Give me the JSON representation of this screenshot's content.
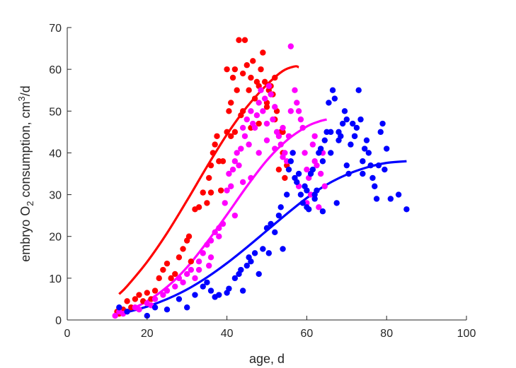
{
  "chart_data": {
    "type": "scatter",
    "title": "",
    "xlabel": "age, d",
    "ylabel_parts": {
      "pre": "embryo O",
      "sub": "2",
      "mid": " consumption, cm",
      "sup": "3",
      "post": "/d"
    },
    "xlim": [
      0,
      100
    ],
    "ylim": [
      0,
      70
    ],
    "xticks": [
      0,
      20,
      40,
      60,
      80,
      100
    ],
    "yticks": [
      0,
      10,
      20,
      30,
      40,
      50,
      60,
      70
    ],
    "grid": false,
    "legend": "none",
    "series": [
      {
        "color": "#ff0000",
        "points": [
          [
            12.5,
            2
          ],
          [
            13,
            1.5
          ],
          [
            14,
            2.5
          ],
          [
            15,
            4.5
          ],
          [
            16,
            3
          ],
          [
            17,
            5
          ],
          [
            18,
            6
          ],
          [
            19,
            4.5
          ],
          [
            20,
            6.5
          ],
          [
            21,
            5
          ],
          [
            22,
            7
          ],
          [
            23,
            10
          ],
          [
            24,
            12
          ],
          [
            25,
            13.5
          ],
          [
            26,
            10
          ],
          [
            27,
            11
          ],
          [
            28,
            15
          ],
          [
            29,
            17
          ],
          [
            30,
            19
          ],
          [
            30.5,
            20
          ],
          [
            31,
            14
          ],
          [
            32,
            26.5
          ],
          [
            33,
            27
          ],
          [
            34,
            30.5
          ],
          [
            35,
            28
          ],
          [
            35.5,
            34
          ],
          [
            36,
            37
          ],
          [
            36.5,
            40
          ],
          [
            37,
            42
          ],
          [
            37.5,
            44
          ],
          [
            38,
            38
          ],
          [
            38.5,
            31
          ],
          [
            39,
            38
          ],
          [
            40,
            45
          ],
          [
            40.5,
            50
          ],
          [
            41,
            52
          ],
          [
            41.5,
            58
          ],
          [
            42,
            60
          ],
          [
            42.5,
            55
          ],
          [
            43,
            67
          ],
          [
            43.5,
            49
          ],
          [
            44,
            59
          ],
          [
            44.5,
            67
          ],
          [
            45,
            61
          ],
          [
            45.5,
            55
          ],
          [
            46,
            58
          ],
          [
            46.5,
            62
          ],
          [
            47,
            53
          ],
          [
            47.5,
            57
          ],
          [
            48,
            56
          ],
          [
            48.5,
            60
          ],
          [
            49,
            64
          ],
          [
            49.5,
            57
          ],
          [
            50,
            52
          ],
          [
            50.5,
            55
          ],
          [
            51,
            56
          ],
          [
            51.5,
            54
          ],
          [
            52,
            58
          ],
          [
            52.5,
            50
          ],
          [
            53,
            36
          ],
          [
            53.5,
            45
          ],
          [
            54,
            40
          ],
          [
            54.5,
            34
          ],
          [
            55,
            37
          ],
          [
            36,
            30.5
          ],
          [
            40,
            60
          ],
          [
            44,
            50
          ],
          [
            46,
            46
          ],
          [
            48,
            47
          ],
          [
            50,
            51
          ],
          [
            52,
            48
          ],
          [
            54,
            45
          ],
          [
            42,
            45
          ],
          [
            41,
            44
          ]
        ],
        "curve": [
          [
            13,
            6.2
          ],
          [
            15,
            8.1
          ],
          [
            20,
            13.9
          ],
          [
            25,
            20.8
          ],
          [
            30,
            28.6
          ],
          [
            35,
            36.7
          ],
          [
            40,
            44.4
          ],
          [
            45,
            51.0
          ],
          [
            50,
            56.3
          ],
          [
            54,
            59.6
          ],
          [
            57,
            60.7
          ],
          [
            58,
            60.5
          ]
        ]
      },
      {
        "color": "#ff00ff",
        "points": [
          [
            12,
            1
          ],
          [
            13,
            2
          ],
          [
            14,
            1.5
          ],
          [
            15,
            2
          ],
          [
            17,
            3
          ],
          [
            18,
            2.5
          ],
          [
            20,
            4
          ],
          [
            21,
            3.5
          ],
          [
            22,
            5
          ],
          [
            24,
            6
          ],
          [
            25,
            7
          ],
          [
            27,
            8
          ],
          [
            28,
            10
          ],
          [
            29,
            9
          ],
          [
            30,
            11
          ],
          [
            31,
            12
          ],
          [
            32,
            10
          ],
          [
            33,
            14
          ],
          [
            34,
            16
          ],
          [
            35,
            18
          ],
          [
            35.5,
            13
          ],
          [
            36,
            19
          ],
          [
            37,
            21
          ],
          [
            38,
            22
          ],
          [
            39,
            23
          ],
          [
            39.5,
            28
          ],
          [
            40,
            31
          ],
          [
            40.5,
            35
          ],
          [
            41,
            32
          ],
          [
            41.5,
            36
          ],
          [
            42,
            38
          ],
          [
            42.5,
            40
          ],
          [
            43,
            37
          ],
          [
            43.5,
            41
          ],
          [
            44,
            46
          ],
          [
            44.5,
            44
          ],
          [
            45,
            48
          ],
          [
            45.5,
            42
          ],
          [
            46,
            50
          ],
          [
            46.5,
            47
          ],
          [
            47,
            46
          ],
          [
            47.5,
            49
          ],
          [
            48,
            52
          ],
          [
            48.5,
            55
          ],
          [
            49,
            50
          ],
          [
            49.5,
            53
          ],
          [
            50,
            47
          ],
          [
            50.5,
            56
          ],
          [
            51,
            54
          ],
          [
            51.5,
            48
          ],
          [
            52,
            51
          ],
          [
            52.5,
            45
          ],
          [
            53,
            44
          ],
          [
            53.5,
            42
          ],
          [
            54,
            46
          ],
          [
            54.5,
            40
          ],
          [
            55,
            38
          ],
          [
            55.5,
            44
          ],
          [
            56,
            65.5
          ],
          [
            56.5,
            40
          ],
          [
            57,
            55
          ],
          [
            57.5,
            52
          ],
          [
            58,
            50
          ],
          [
            58.5,
            48
          ],
          [
            59,
            46
          ],
          [
            59.5,
            40
          ],
          [
            60,
            36
          ],
          [
            60.5,
            34
          ],
          [
            61,
            30
          ],
          [
            61.5,
            42
          ],
          [
            62,
            44
          ],
          [
            62.5,
            37
          ],
          [
            63,
            27
          ],
          [
            63.5,
            35
          ],
          [
            64,
            40
          ],
          [
            64.5,
            32
          ],
          [
            42,
            25
          ],
          [
            44,
            33
          ],
          [
            46,
            34
          ],
          [
            48,
            40
          ],
          [
            50,
            43
          ],
          [
            52,
            41
          ],
          [
            54,
            39
          ],
          [
            56,
            50
          ],
          [
            58,
            32
          ],
          [
            60,
            28
          ],
          [
            62,
            38
          ],
          [
            33,
            12
          ],
          [
            36,
            15
          ],
          [
            38,
            20
          ]
        ],
        "curve": [
          [
            13,
            1.3
          ],
          [
            15,
            2.1
          ],
          [
            20,
            4.5
          ],
          [
            25,
            7.9
          ],
          [
            30,
            12.6
          ],
          [
            35,
            18.6
          ],
          [
            40,
            25.2
          ],
          [
            45,
            32.0
          ],
          [
            50,
            38.2
          ],
          [
            55,
            43.0
          ],
          [
            60,
            46.3
          ],
          [
            63,
            47.5
          ],
          [
            65,
            48.0
          ]
        ]
      },
      {
        "color": "#0000ff",
        "points": [
          [
            13,
            3
          ],
          [
            15,
            2
          ],
          [
            20,
            1
          ],
          [
            22,
            3
          ],
          [
            25,
            2.5
          ],
          [
            28,
            5
          ],
          [
            30,
            3
          ],
          [
            32,
            6
          ],
          [
            34,
            8
          ],
          [
            35,
            9
          ],
          [
            36,
            7
          ],
          [
            37,
            5.5
          ],
          [
            38,
            6
          ],
          [
            40,
            6.5
          ],
          [
            40.5,
            7.5
          ],
          [
            42,
            10
          ],
          [
            43,
            11
          ],
          [
            43.5,
            12
          ],
          [
            44,
            7
          ],
          [
            45,
            13
          ],
          [
            45.5,
            15
          ],
          [
            46,
            14
          ],
          [
            47,
            16
          ],
          [
            48,
            11
          ],
          [
            49,
            17
          ],
          [
            50,
            22
          ],
          [
            50.5,
            16
          ],
          [
            51,
            23
          ],
          [
            52,
            21
          ],
          [
            53,
            25
          ],
          [
            53.5,
            27
          ],
          [
            54,
            17
          ],
          [
            55,
            30
          ],
          [
            55.5,
            36
          ],
          [
            56,
            38
          ],
          [
            56.5,
            40
          ],
          [
            57,
            34
          ],
          [
            57.5,
            33
          ],
          [
            58,
            35
          ],
          [
            58.5,
            30
          ],
          [
            59,
            28
          ],
          [
            59.5,
            32
          ],
          [
            60,
            27
          ],
          [
            60.5,
            26.5
          ],
          [
            61,
            35
          ],
          [
            61.5,
            36
          ],
          [
            62,
            29
          ],
          [
            62.5,
            31
          ],
          [
            63,
            40
          ],
          [
            63.5,
            41
          ],
          [
            64,
            38
          ],
          [
            64.5,
            43
          ],
          [
            65,
            45
          ],
          [
            65.5,
            52
          ],
          [
            66,
            40
          ],
          [
            66.5,
            55
          ],
          [
            67,
            53
          ],
          [
            67.5,
            28
          ],
          [
            68,
            43
          ],
          [
            68.5,
            44
          ],
          [
            69,
            47
          ],
          [
            69.5,
            50
          ],
          [
            70,
            37
          ],
          [
            70.5,
            35
          ],
          [
            71,
            42
          ],
          [
            71.5,
            47
          ],
          [
            72,
            44
          ],
          [
            72.5,
            46
          ],
          [
            73,
            55
          ],
          [
            73.5,
            48
          ],
          [
            74,
            35
          ],
          [
            74.5,
            41
          ],
          [
            75,
            43
          ],
          [
            75.5,
            40
          ],
          [
            76,
            37
          ],
          [
            76.5,
            34
          ],
          [
            77,
            32
          ],
          [
            77.5,
            29
          ],
          [
            78,
            37
          ],
          [
            78.5,
            45
          ],
          [
            79,
            47
          ],
          [
            79.5,
            36
          ],
          [
            80,
            41
          ],
          [
            81,
            29
          ],
          [
            83,
            30
          ],
          [
            85,
            26.5
          ],
          [
            60,
            31
          ],
          [
            62,
            30
          ],
          [
            64,
            26
          ],
          [
            66,
            45
          ],
          [
            68,
            45
          ],
          [
            70,
            48
          ],
          [
            72,
            44
          ],
          [
            74,
            38
          ]
        ],
        "curve": [
          [
            13,
            1.5
          ],
          [
            15,
            1.9
          ],
          [
            20,
            3.2
          ],
          [
            25,
            5.0
          ],
          [
            30,
            7.3
          ],
          [
            35,
            10.2
          ],
          [
            40,
            13.6
          ],
          [
            45,
            17.4
          ],
          [
            50,
            21.4
          ],
          [
            55,
            25.4
          ],
          [
            60,
            29.2
          ],
          [
            65,
            32.4
          ],
          [
            70,
            34.8
          ],
          [
            75,
            36.5
          ],
          [
            80,
            37.6
          ],
          [
            85,
            38.0
          ]
        ]
      }
    ]
  }
}
